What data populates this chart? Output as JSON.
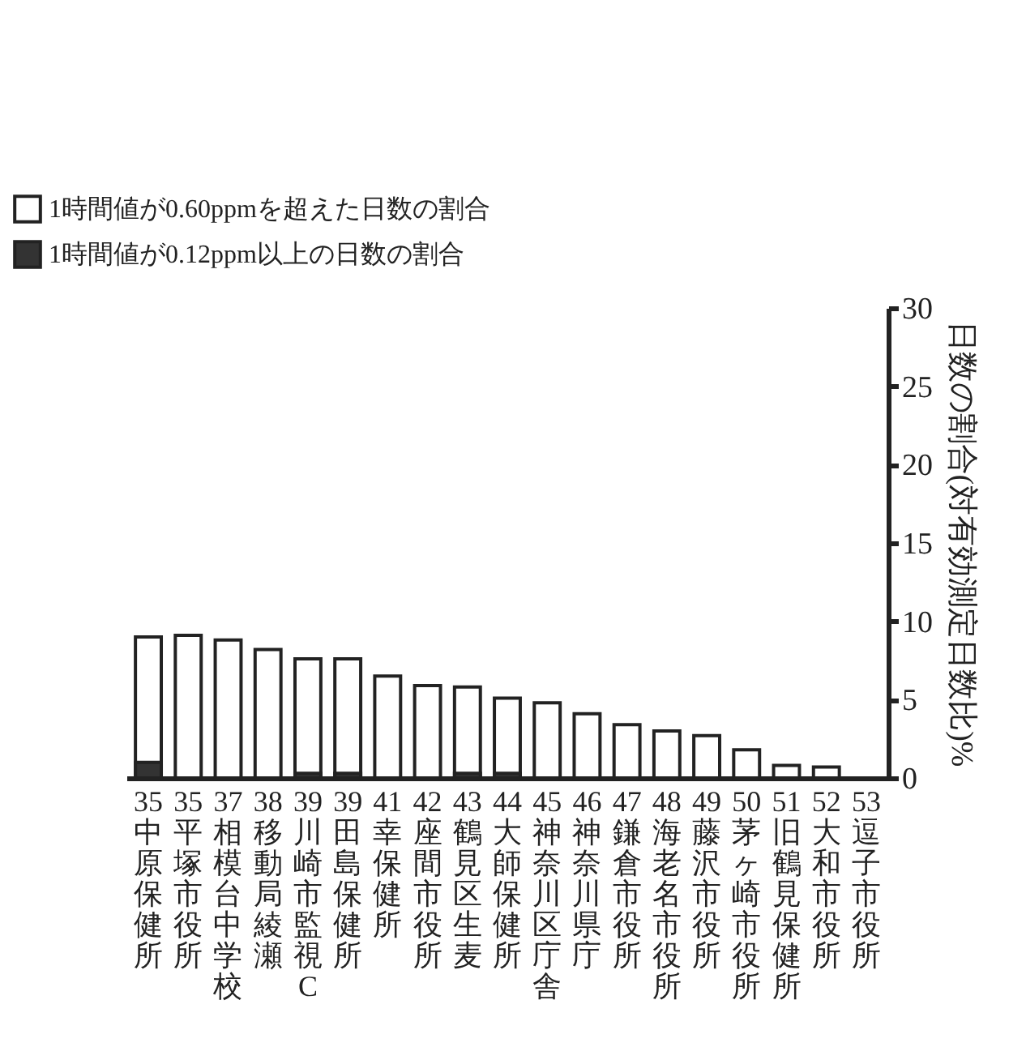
{
  "chart_data": {
    "type": "bar",
    "ylabel": "日数の割合(対有効測定日数比)%",
    "categories": [
      "35中原保健所",
      "35平塚市役所",
      "37相模台中学校",
      "38移動局綾瀬",
      "39川崎市監視C",
      "39田島保健所",
      "41幸保健所",
      "42座間市役所",
      "43鶴見区生麦",
      "44大師保健所",
      "45神奈川区庁舎",
      "46神奈川県庁",
      "47鎌倉市役所",
      "48海老名市役所",
      "49藤沢市役所",
      "50茅ヶ崎市役所",
      "51旧鶴見保健所",
      "52大和市役所",
      "53逗子市役所"
    ],
    "series": [
      {
        "name": "1時間値が0.60ppmを超えた日数の割合",
        "color": "#ffffff",
        "values": [
          9.0,
          9.1,
          8.8,
          8.2,
          7.6,
          7.6,
          6.5,
          5.9,
          5.8,
          5.1,
          4.8,
          4.1,
          3.4,
          3.0,
          2.7,
          1.8,
          0.8,
          0.7,
          0
        ]
      },
      {
        "name": "1時間値が0.12ppm以上の日数の割合",
        "color": "#333333",
        "values": [
          1.0,
          0,
          0,
          0,
          0.3,
          0.3,
          0,
          0,
          0.3,
          0.3,
          0,
          0,
          0,
          0,
          0,
          0,
          0,
          0,
          0
        ]
      }
    ],
    "ylim": [
      0,
      30
    ],
    "yticks": [
      0,
      5,
      10,
      15,
      20,
      25,
      30
    ],
    "grid": false,
    "legend": "top left"
  }
}
